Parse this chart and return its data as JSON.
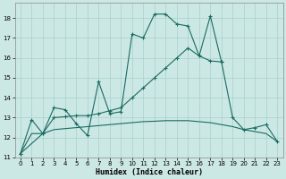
{
  "xlabel": "Humidex (Indice chaleur)",
  "bg_color": "#cce8e5",
  "grid_color": "#a8d0cc",
  "line_color": "#1a6b60",
  "xlim": [
    -0.5,
    23.5
  ],
  "ylim": [
    11.0,
    18.75
  ],
  "yticks": [
    11,
    12,
    13,
    14,
    15,
    16,
    17,
    18
  ],
  "xticks": [
    0,
    1,
    2,
    3,
    4,
    5,
    6,
    7,
    8,
    9,
    10,
    11,
    12,
    13,
    14,
    15,
    16,
    17,
    18,
    19,
    20,
    21,
    22,
    23
  ],
  "line1_x": [
    0,
    1,
    2,
    3,
    4,
    5,
    6,
    7,
    8,
    9,
    10,
    11,
    12,
    13,
    14,
    15,
    16,
    17,
    18
  ],
  "line1_y": [
    11.2,
    12.9,
    12.2,
    13.5,
    13.4,
    12.7,
    12.1,
    14.8,
    13.2,
    13.3,
    17.2,
    17.0,
    18.2,
    18.2,
    17.7,
    17.6,
    16.1,
    18.1,
    15.8
  ],
  "line2_x": [
    0,
    1,
    2,
    3,
    4,
    5,
    6,
    7,
    8,
    9,
    10,
    11,
    12,
    13,
    14,
    15,
    16,
    17,
    18,
    19,
    20,
    21,
    22,
    23
  ],
  "line2_y": [
    11.2,
    12.2,
    12.2,
    12.4,
    12.45,
    12.5,
    12.55,
    12.6,
    12.65,
    12.7,
    12.75,
    12.8,
    12.82,
    12.85,
    12.85,
    12.85,
    12.8,
    12.75,
    12.65,
    12.55,
    12.4,
    12.3,
    12.2,
    11.8
  ],
  "line3_x": [
    0,
    2,
    3,
    4,
    5,
    6,
    7,
    8,
    9,
    10,
    11,
    12,
    13,
    14,
    15,
    16,
    17,
    18,
    19,
    20,
    21,
    22,
    23
  ],
  "line3_y": [
    11.2,
    12.2,
    13.0,
    13.05,
    13.1,
    13.1,
    13.2,
    13.35,
    13.5,
    14.0,
    14.5,
    15.0,
    15.5,
    16.0,
    16.5,
    16.1,
    15.85,
    15.8,
    13.0,
    12.4,
    12.5,
    12.65,
    11.8
  ]
}
